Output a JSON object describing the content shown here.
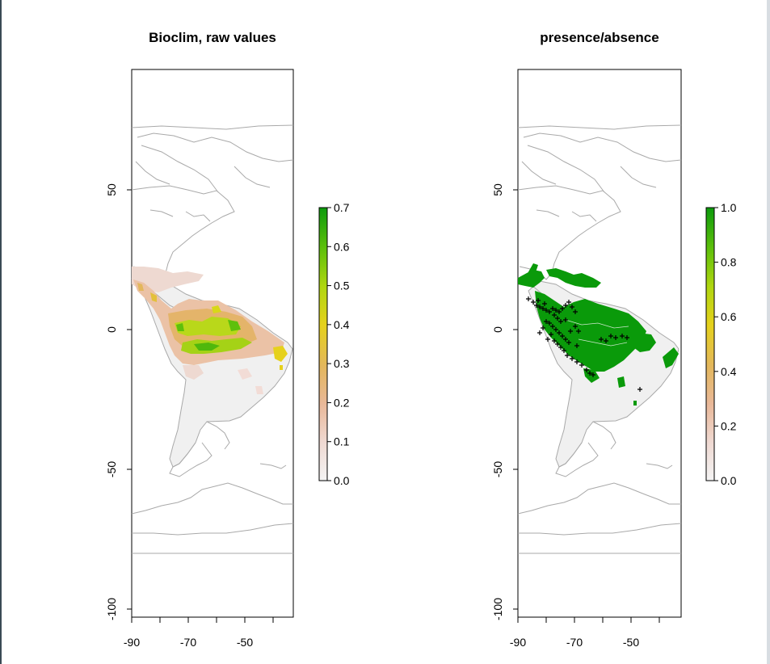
{
  "panels": [
    {
      "title": "Bioclim, raw values",
      "y_ticks": [
        "50",
        "0",
        "-50",
        "-100"
      ],
      "x_ticks": [
        "-90",
        "-70",
        "-50"
      ],
      "legend": {
        "ticks": [
          "0.0",
          "0.1",
          "0.2",
          "0.3",
          "0.4",
          "0.5",
          "0.6",
          "0.7"
        ],
        "max": 0.7
      },
      "mode": "continuous"
    },
    {
      "title": "presence/absence",
      "y_ticks": [
        "50",
        "0",
        "-50",
        "-100"
      ],
      "x_ticks": [
        "-90",
        "-70",
        "-50"
      ],
      "legend": {
        "ticks": [
          "0.0",
          "0.2",
          "0.4",
          "0.6",
          "0.8",
          "1.0"
        ],
        "max": 1.0
      },
      "mode": "binary"
    }
  ],
  "colors": {
    "coast": "#a9a9a9",
    "land_bg": "#f0f0f0",
    "ramp": [
      "#f2f2f2",
      "#eed8d0",
      "#e8b496",
      "#e3b75a",
      "#e6d11a",
      "#b6d80e",
      "#64c20c",
      "#0c9a0c"
    ],
    "presence": "#0a9a0a",
    "points": "#000000"
  }
}
